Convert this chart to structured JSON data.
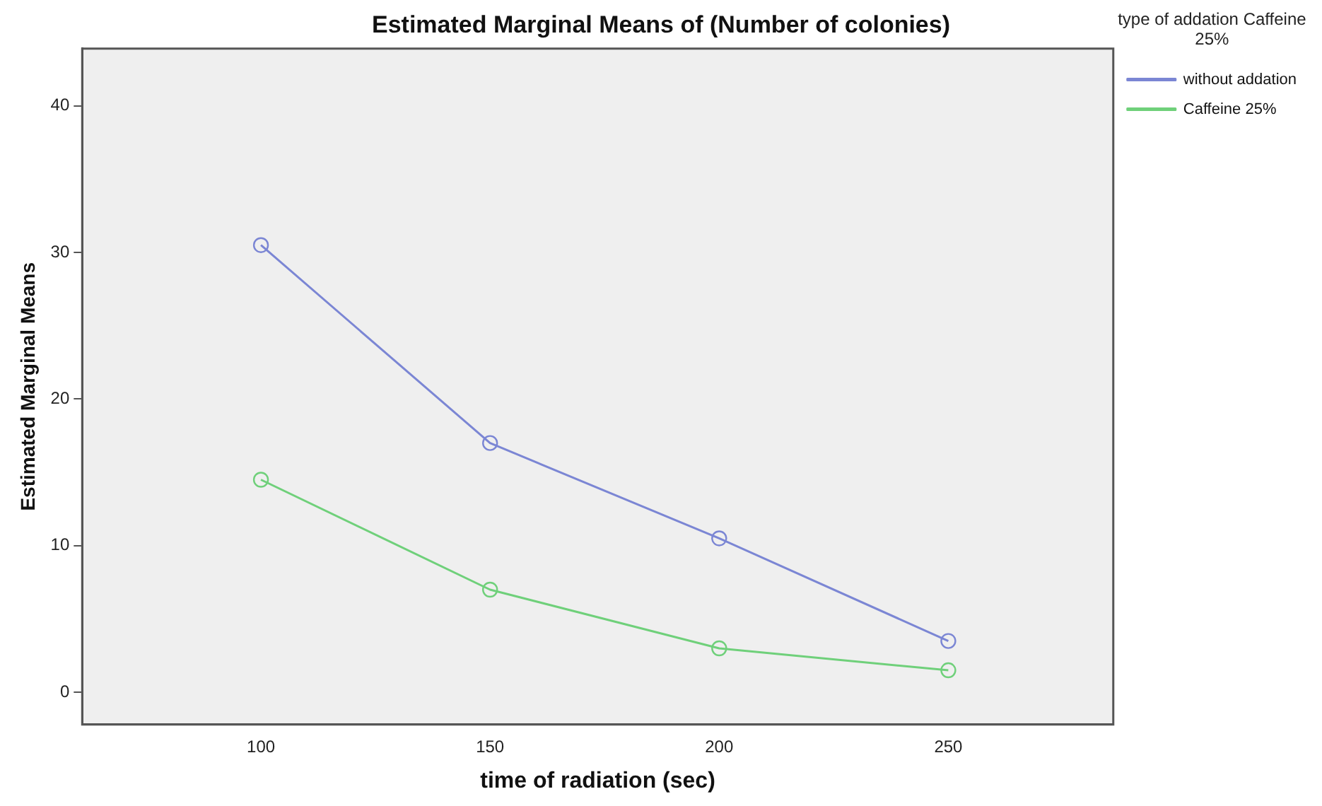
{
  "chart_data": {
    "type": "line",
    "title": "Estimated Marginal Means of (Number of colonies)",
    "xlabel": "time of radiation (sec)",
    "ylabel": "Estimated Marginal Means",
    "legend_title": "type of addation Caffeine 25%",
    "x": [
      100,
      150,
      200,
      250
    ],
    "xlim": [
      61,
      286
    ],
    "xticks": [
      100,
      150,
      200,
      250
    ],
    "ylim": [
      -2.2,
      43.9
    ],
    "yticks": [
      0,
      10,
      20,
      30,
      40
    ],
    "series": [
      {
        "name": "without addation",
        "color": "#7b86d4",
        "values": [
          30.5,
          17,
          10.5,
          3.5
        ]
      },
      {
        "name": "Caffeine 25%",
        "color": "#6fd07a",
        "values": [
          14.5,
          7,
          3,
          1.5
        ]
      }
    ],
    "marker": "circle",
    "line_style": "solid",
    "grid": false,
    "legend": "top right"
  }
}
